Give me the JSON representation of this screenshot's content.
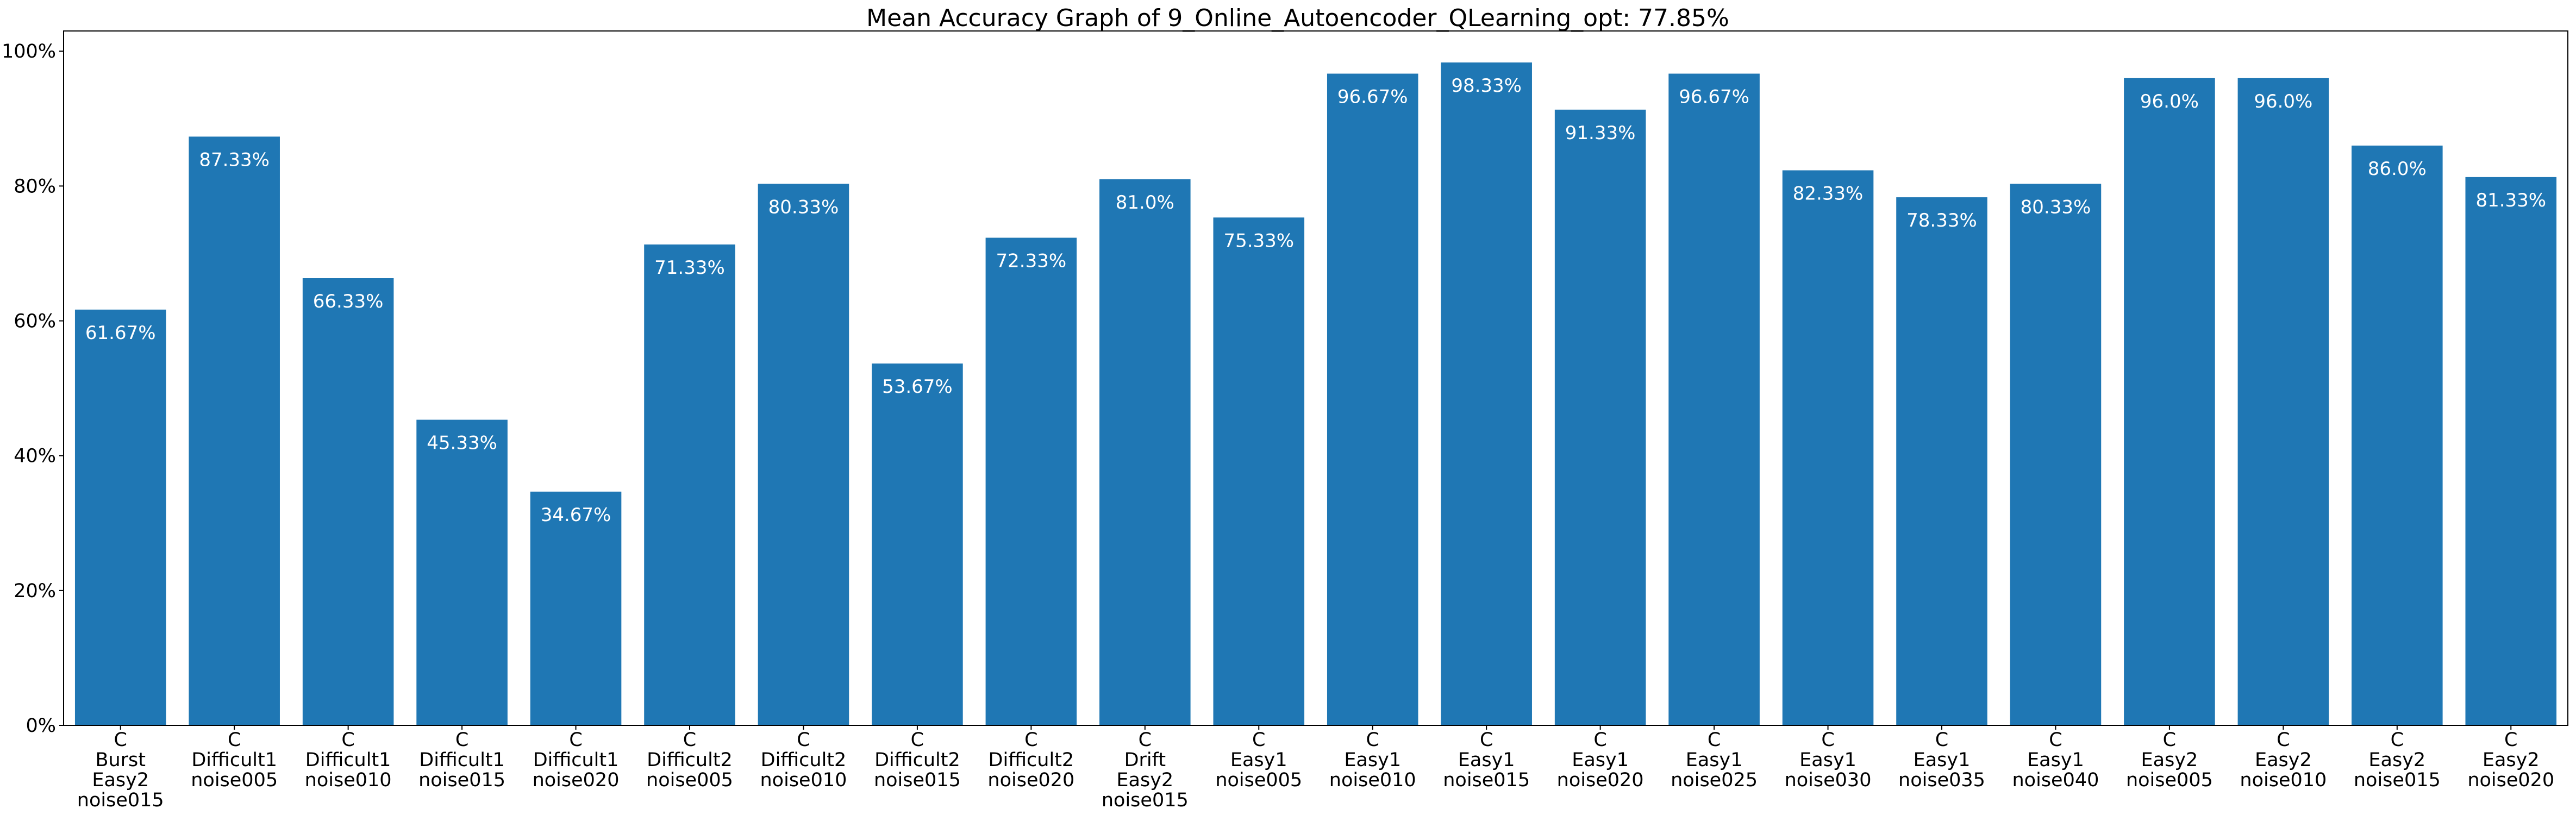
{
  "chart_data": {
    "type": "bar",
    "title": "Mean Accuracy Graph of 9_Online_Autoencoder_QLearning_opt: 77.85%",
    "xlabel": "",
    "ylabel": "",
    "ylim": [
      0,
      103
    ],
    "yticks": [
      0,
      20,
      40,
      60,
      80,
      100
    ],
    "ytick_labels": [
      "0%",
      "20%",
      "40%",
      "60%",
      "80%",
      "100%"
    ],
    "bar_color": "#1f77b4",
    "grid": false,
    "categories": [
      [
        "C",
        "Burst",
        "Easy2",
        "noise015"
      ],
      [
        "C",
        "Difficult1",
        "noise005"
      ],
      [
        "C",
        "Difficult1",
        "noise010"
      ],
      [
        "C",
        "Difficult1",
        "noise015"
      ],
      [
        "C",
        "Difficult1",
        "noise020"
      ],
      [
        "C",
        "Difficult2",
        "noise005"
      ],
      [
        "C",
        "Difficult2",
        "noise010"
      ],
      [
        "C",
        "Difficult2",
        "noise015"
      ],
      [
        "C",
        "Difficult2",
        "noise020"
      ],
      [
        "C",
        "Drift",
        "Easy2",
        "noise015"
      ],
      [
        "C",
        "Easy1",
        "noise005"
      ],
      [
        "C",
        "Easy1",
        "noise010"
      ],
      [
        "C",
        "Easy1",
        "noise015"
      ],
      [
        "C",
        "Easy1",
        "noise020"
      ],
      [
        "C",
        "Easy1",
        "noise025"
      ],
      [
        "C",
        "Easy1",
        "noise030"
      ],
      [
        "C",
        "Easy1",
        "noise035"
      ],
      [
        "C",
        "Easy1",
        "noise040"
      ],
      [
        "C",
        "Easy2",
        "noise005"
      ],
      [
        "C",
        "Easy2",
        "noise010"
      ],
      [
        "C",
        "Easy2",
        "noise015"
      ],
      [
        "C",
        "Easy2",
        "noise020"
      ]
    ],
    "values": [
      61.67,
      87.33,
      66.33,
      45.33,
      34.67,
      71.33,
      80.33,
      53.67,
      72.33,
      81.0,
      75.33,
      96.67,
      98.33,
      91.33,
      96.67,
      82.33,
      78.33,
      80.33,
      96.0,
      96.0,
      86.0,
      81.33
    ],
    "value_labels": [
      "61.67%",
      "87.33%",
      "66.33%",
      "45.33%",
      "34.67%",
      "71.33%",
      "80.33%",
      "53.67%",
      "72.33%",
      "81.0%",
      "75.33%",
      "96.67%",
      "98.33%",
      "91.33%",
      "96.67%",
      "82.33%",
      "78.33%",
      "80.33%",
      "96.0%",
      "96.0%",
      "86.0%",
      "81.33%"
    ]
  }
}
